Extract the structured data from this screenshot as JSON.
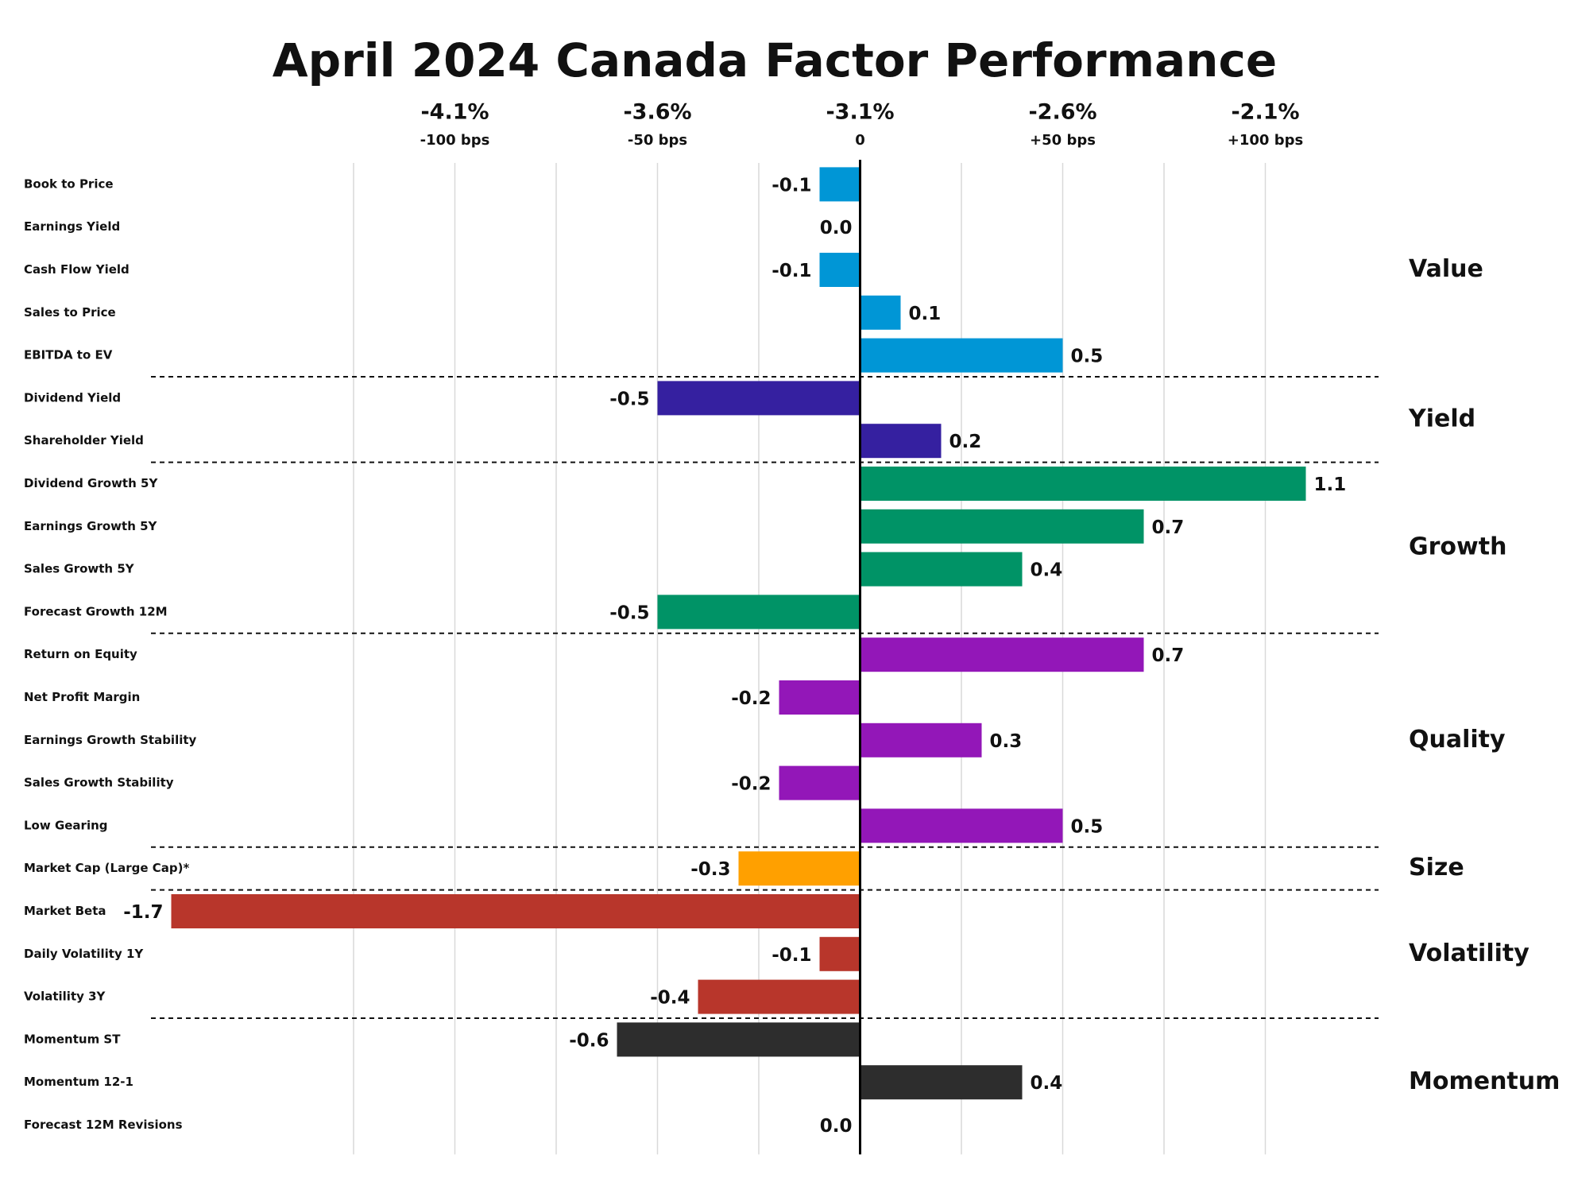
{
  "chart_data": {
    "type": "bar",
    "orientation": "horizontal",
    "title": "April 2024 Canada Factor Performance",
    "xlim": [
      -1.75,
      1.25
    ],
    "xticks": [
      {
        "value": -1.0,
        "label": "-4.1%",
        "sublabel": "-100 bps"
      },
      {
        "value": -0.5,
        "label": "-3.6%",
        "sublabel": "-50 bps"
      },
      {
        "value": 0,
        "label": "-3.1%",
        "sublabel": "0"
      },
      {
        "value": 0.5,
        "label": "-2.6%",
        "sublabel": "+50 bps"
      },
      {
        "value": 1.0,
        "label": "-2.1%",
        "sublabel": "+100 bps"
      }
    ],
    "gridlines": [
      -1.25,
      -1.0,
      -0.75,
      -0.5,
      -0.25,
      0.25,
      0.5,
      0.75,
      1.0
    ],
    "grid": true,
    "series": [
      {
        "name": "Value",
        "color": "#0096d6",
        "categories": [
          "Book to Price",
          "Earnings Yield",
          "Cash Flow Yield",
          "Sales to Price",
          "EBITDA to EV"
        ],
        "values": [
          -0.1,
          0,
          -0.1,
          0.1,
          0.5
        ],
        "value_labels": [
          "-0.1",
          "0.0",
          "-0.1",
          "0.1",
          "0.5"
        ]
      },
      {
        "name": "Yield",
        "color": "#3520a0",
        "categories": [
          "Dividend Yield",
          "Shareholder Yield"
        ],
        "values": [
          -0.5,
          0.2
        ],
        "value_labels": [
          "-0.5",
          "0.2"
        ]
      },
      {
        "name": "Growth",
        "color": "#009366",
        "categories": [
          "Dividend Growth 5Y",
          "Earnings Growth 5Y",
          "Sales Growth 5Y",
          "Forecast Growth 12M"
        ],
        "values": [
          1.1,
          0.7,
          0.4,
          -0.5
        ],
        "value_labels": [
          "1.1",
          "0.7",
          "0.4",
          "-0.5"
        ]
      },
      {
        "name": "Quality",
        "color": "#9317b8",
        "categories": [
          "Return on Equity",
          "Net Profit Margin",
          "Earnings Growth Stability",
          "Sales Growth Stability",
          "Low Gearing"
        ],
        "values": [
          0.7,
          -0.2,
          0.3,
          -0.2,
          0.5
        ],
        "value_labels": [
          "0.7",
          "-0.2",
          "0.3",
          "-0.2",
          "0.5"
        ]
      },
      {
        "name": "Size",
        "color": "#ffa000",
        "categories": [
          "Market Cap (Large Cap)*"
        ],
        "values": [
          -0.3
        ],
        "value_labels": [
          "-0.3"
        ]
      },
      {
        "name": "Volatility",
        "color": "#b8362b",
        "categories": [
          "Market Beta",
          "Daily Volatility 1Y",
          "Volatility 3Y"
        ],
        "values": [
          -1.7,
          -0.1,
          -0.4
        ],
        "value_labels": [
          "-1.7",
          "-0.1",
          "-0.4"
        ]
      },
      {
        "name": "Momentum",
        "color": "#2d2d2d",
        "categories": [
          "Momentum ST",
          "Momentum 12-1",
          "Forecast 12M Revisions"
        ],
        "values": [
          -0.6,
          0.4,
          0
        ],
        "value_labels": [
          "-0.6",
          "0.4",
          "0.0"
        ]
      }
    ]
  }
}
